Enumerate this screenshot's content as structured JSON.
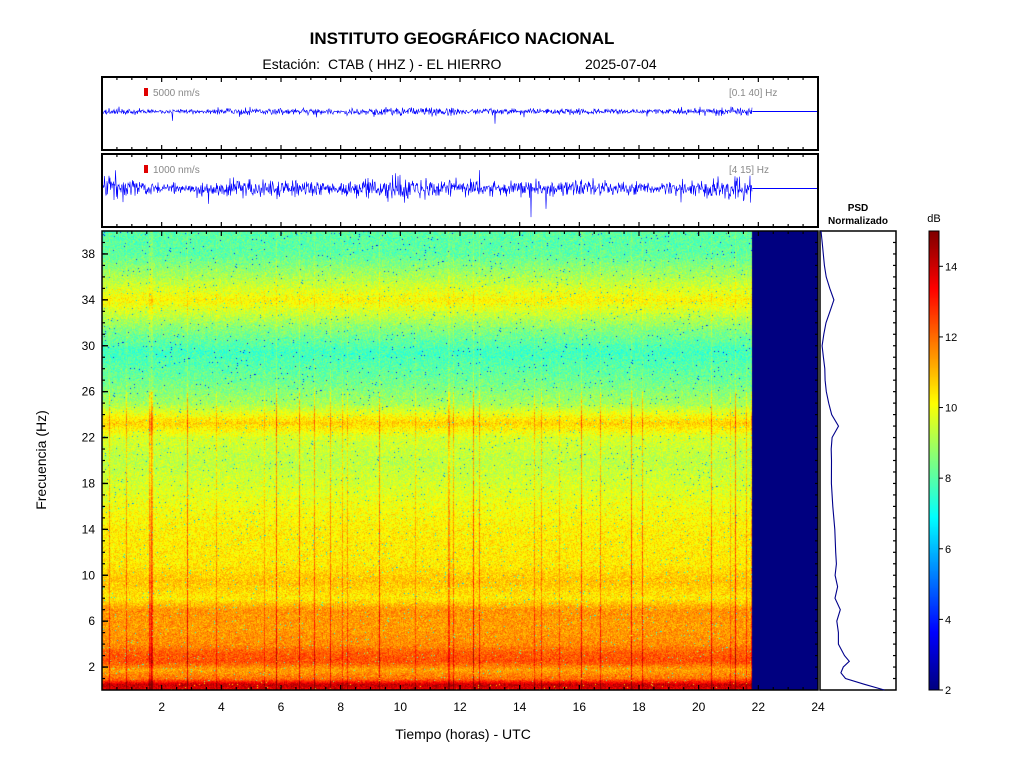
{
  "header": {
    "title": "INSTITUTO GEOGRÁFICO NACIONAL",
    "station_label": "Estación:",
    "station": "CTAB ( HHZ ) - EL HIERRO",
    "date": "2025-07-04"
  },
  "chart_data": [
    {
      "type": "line",
      "panel": "seismogram-broadband",
      "scale_label": "5000 nm/s",
      "filter_label": "[0.1 40] Hz",
      "x_range_hours": [
        0,
        24
      ],
      "data_end_hour": 21.8,
      "trace_color": "#0000ff"
    },
    {
      "type": "line",
      "panel": "seismogram-highpass",
      "scale_label": "1000 nm/s",
      "filter_label": "[4 15] Hz",
      "x_range_hours": [
        0,
        24
      ],
      "data_end_hour": 21.8,
      "trace_color": "#0000ff"
    },
    {
      "type": "heatmap",
      "panel": "spectrogram",
      "xlabel": "Tiempo (horas) - UTC",
      "ylabel": "Frecuencia  (Hz)",
      "xlim": [
        0,
        24
      ],
      "ylim": [
        0,
        40
      ],
      "x_ticks": [
        2,
        4,
        6,
        8,
        10,
        12,
        14,
        16,
        18,
        20,
        22,
        24
      ],
      "y_ticks": [
        2,
        6,
        10,
        14,
        18,
        22,
        26,
        30,
        34,
        38
      ],
      "data_end_hour": 21.8,
      "no_data_color": "#000080",
      "bands": [
        {
          "f": 0.0,
          "db": 13.6
        },
        {
          "f": 0.5,
          "db": 14.2
        },
        {
          "f": 1.0,
          "db": 12.0
        },
        {
          "f": 1.8,
          "db": 11.3
        },
        {
          "f": 2.5,
          "db": 12.4
        },
        {
          "f": 3.3,
          "db": 12.2
        },
        {
          "f": 4.0,
          "db": 11.6
        },
        {
          "f": 5.5,
          "db": 11.4
        },
        {
          "f": 7.0,
          "db": 11.5
        },
        {
          "f": 8.0,
          "db": 10.4
        },
        {
          "f": 9.5,
          "db": 10.9
        },
        {
          "f": 11.0,
          "db": 10.4
        },
        {
          "f": 14.0,
          "db": 10.3
        },
        {
          "f": 16.0,
          "db": 10.0
        },
        {
          "f": 18.0,
          "db": 9.6
        },
        {
          "f": 20.0,
          "db": 9.3
        },
        {
          "f": 22.0,
          "db": 9.6
        },
        {
          "f": 23.3,
          "db": 10.7
        },
        {
          "f": 25.0,
          "db": 9.0
        },
        {
          "f": 27.0,
          "db": 8.3
        },
        {
          "f": 29.5,
          "db": 7.7
        },
        {
          "f": 31.5,
          "db": 8.6
        },
        {
          "f": 34.0,
          "db": 10.2
        },
        {
          "f": 36.0,
          "db": 9.1
        },
        {
          "f": 38.0,
          "db": 8.1
        },
        {
          "f": 40.0,
          "db": 8.0
        }
      ]
    },
    {
      "type": "line",
      "panel": "psd",
      "title": "PSD\nNormalizado",
      "title_line1": "PSD",
      "title_line2": "Normalizado",
      "line_color": "#00008b",
      "freq": [
        0,
        0.5,
        1,
        1.5,
        2,
        2.5,
        3,
        4,
        5,
        6,
        7,
        8,
        9,
        10,
        11,
        12,
        14,
        16,
        18,
        20,
        21,
        22,
        23,
        24,
        25,
        26,
        27,
        28,
        29,
        30,
        31,
        32,
        33,
        34,
        35,
        36,
        37,
        38,
        39,
        40
      ],
      "value": [
        0.88,
        0.6,
        0.35,
        0.27,
        0.3,
        0.4,
        0.33,
        0.25,
        0.24,
        0.22,
        0.27,
        0.2,
        0.24,
        0.2,
        0.21,
        0.2,
        0.19,
        0.17,
        0.15,
        0.14,
        0.15,
        0.16,
        0.24,
        0.15,
        0.11,
        0.08,
        0.06,
        0.05,
        0.03,
        0.02,
        0.03,
        0.06,
        0.12,
        0.17,
        0.12,
        0.08,
        0.05,
        0.03,
        0.01,
        0.0
      ]
    },
    {
      "type": "heatmap",
      "panel": "colorbar",
      "unit": "dB",
      "range": [
        2,
        15
      ],
      "ticks": [
        2,
        4,
        6,
        8,
        10,
        12,
        14
      ]
    }
  ]
}
